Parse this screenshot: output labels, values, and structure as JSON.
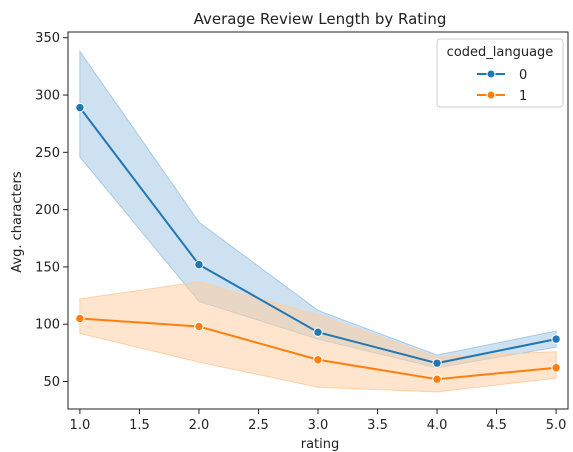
{
  "chart_data": {
    "type": "line",
    "title": "Average Review Length by Rating",
    "xlabel": "rating",
    "ylabel": "Avg. characters",
    "xlim": [
      0.9,
      5.1
    ],
    "ylim": [
      26,
      355
    ],
    "xticks": [
      1.0,
      1.5,
      2.0,
      2.5,
      3.0,
      3.5,
      4.0,
      4.5,
      5.0
    ],
    "xtick_labels": [
      "1.0",
      "1.5",
      "2.0",
      "2.5",
      "3.0",
      "3.5",
      "4.0",
      "4.5",
      "5.0"
    ],
    "yticks": [
      50,
      100,
      150,
      200,
      250,
      300,
      350
    ],
    "ytick_labels": [
      "50",
      "100",
      "150",
      "200",
      "250",
      "300",
      "350"
    ],
    "grid": false,
    "legend": {
      "title": "coded_language",
      "placement": "top-right"
    },
    "x": [
      1,
      2,
      3,
      4,
      5
    ],
    "series": [
      {
        "name": "0",
        "color": "#1f77b4",
        "band_color": "#a6c9e4",
        "values": [
          289,
          152,
          93,
          66,
          87
        ],
        "ci_low": [
          246,
          120,
          87,
          62,
          80
        ],
        "ci_high": [
          338,
          189,
          112,
          73,
          94
        ]
      },
      {
        "name": "1",
        "color": "#ff7f0e",
        "band_color": "#ffcfa4",
        "values": [
          105,
          98,
          69,
          52,
          62
        ],
        "ci_low": [
          92,
          67,
          45,
          41,
          53
        ],
        "ci_high": [
          122,
          137,
          108,
          71,
          76
        ]
      }
    ]
  }
}
